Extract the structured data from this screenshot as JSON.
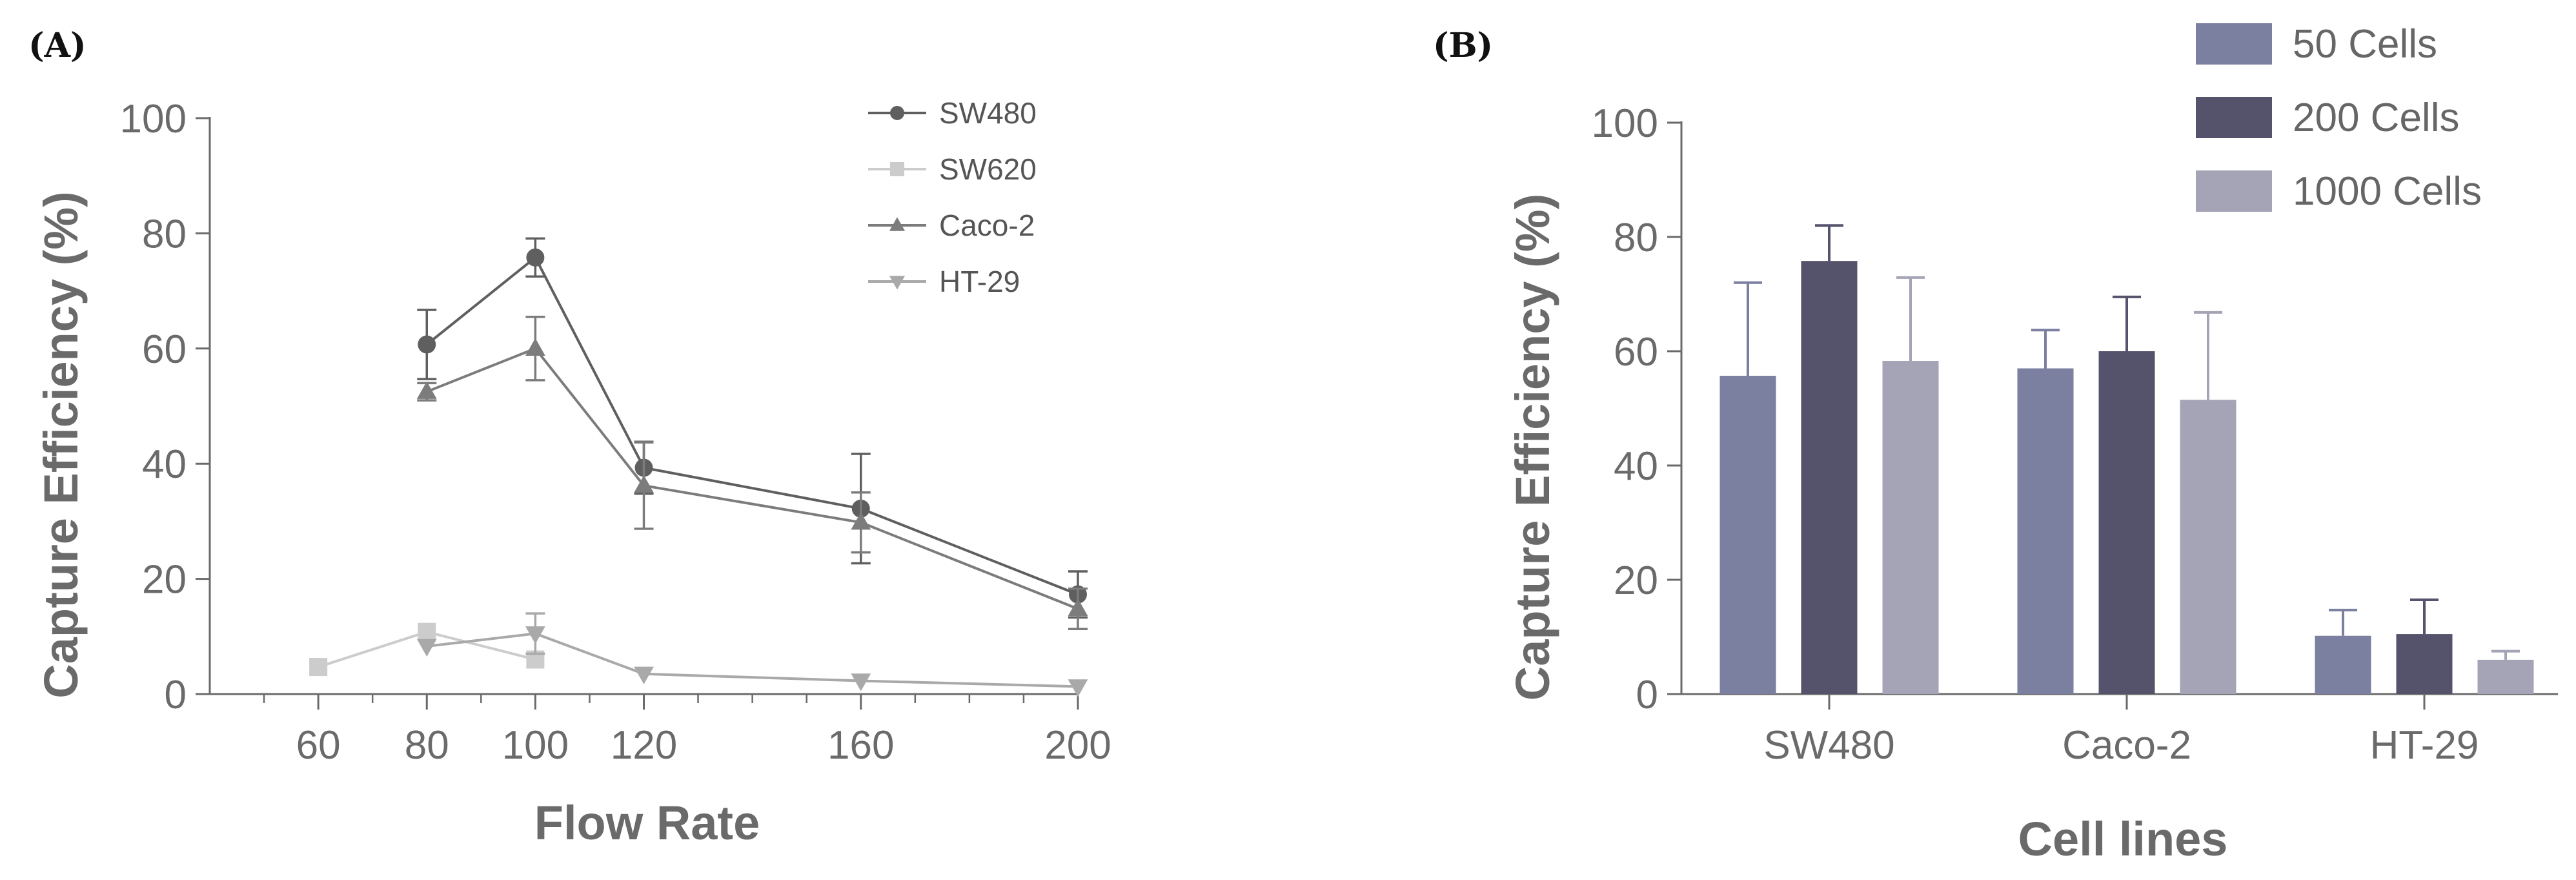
{
  "panels": {
    "a_label": "(A)",
    "b_label": "(B)"
  },
  "chart_data": [
    {
      "type": "line",
      "title": "",
      "xlabel": "Flow Rate",
      "ylabel": "Capture Efficiency (%)",
      "xlim": [
        40,
        200
      ],
      "ylim": [
        0,
        100
      ],
      "x_ticks": [
        60,
        80,
        100,
        120,
        160,
        200
      ],
      "y_ticks": [
        0,
        20,
        40,
        60,
        80,
        100
      ],
      "minor_x_step": 10,
      "grid": false,
      "legend_position": "top-right",
      "series": [
        {
          "name": "SW480",
          "marker": "circle",
          "color": "#5f5f5f",
          "points": [
            [
              80,
              60.7,
              6
            ],
            [
              100,
              75.8,
              3.3
            ],
            [
              120,
              39.3,
              4.5
            ],
            [
              160,
              32.2,
              9.5
            ],
            [
              200,
              17.3,
              4
            ]
          ]
        },
        {
          "name": "SW620",
          "marker": "square",
          "color": "#cccccc",
          "points": [
            [
              60,
              4.7,
              0
            ],
            [
              80,
              10.8,
              0
            ],
            [
              100,
              6.0,
              0
            ]
          ]
        },
        {
          "name": "Caco-2",
          "marker": "triangle-up",
          "color": "#7c7c7c",
          "points": [
            [
              80,
              52.5,
              1.5
            ],
            [
              100,
              60.0,
              5.5
            ],
            [
              120,
              36.2,
              7.5
            ],
            [
              160,
              29.8,
              5.2
            ],
            [
              200,
              14.8,
              3.5
            ]
          ]
        },
        {
          "name": "HT-29",
          "marker": "triangle-down",
          "color": "#a9a9a9",
          "points": [
            [
              80,
              8.3,
              0
            ],
            [
              100,
              10.5,
              3.5
            ],
            [
              120,
              3.5,
              0
            ],
            [
              160,
              2.3,
              0
            ],
            [
              200,
              1.3,
              0
            ]
          ]
        }
      ]
    },
    {
      "type": "bar",
      "title": "",
      "xlabel": "Cell lines",
      "ylabel": "Capture Efficiency (%)",
      "categories": [
        "SW480",
        "Caco-2",
        "HT-29"
      ],
      "ylim": [
        0,
        100
      ],
      "y_ticks": [
        0,
        20,
        40,
        60,
        80,
        100
      ],
      "grid": false,
      "legend_position": "top-right",
      "series": [
        {
          "name": "50 Cells",
          "color": "#7b7fa0",
          "values": [
            55.7,
            57.0,
            10.2
          ],
          "errors": [
            16.3,
            6.7,
            4.5
          ]
        },
        {
          "name": "200 Cells",
          "color": "#55526b",
          "values": [
            75.8,
            60.0,
            10.5
          ],
          "errors": [
            6.2,
            9.5,
            6.0
          ]
        },
        {
          "name": "1000 Cells",
          "color": "#a5a4b7",
          "values": [
            58.3,
            51.5,
            6.0
          ],
          "errors": [
            14.6,
            15.3,
            1.5
          ]
        }
      ]
    }
  ]
}
